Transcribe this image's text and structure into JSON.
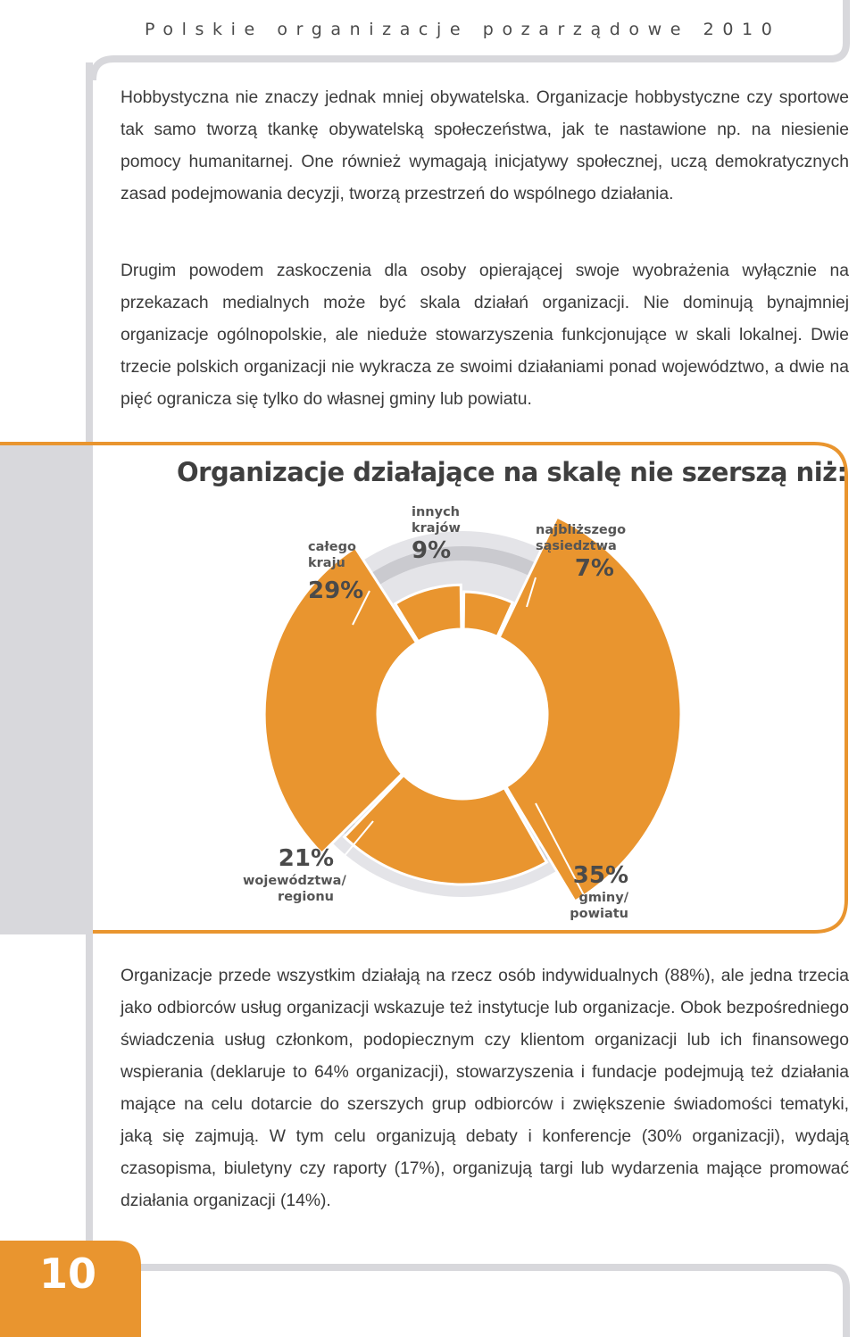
{
  "header": {
    "title": "Polskie organizacje pozarządowe 2010"
  },
  "paragraphs": [
    "Hobbystyczna nie znaczy jednak mniej obywatelska. Organizacje hobbystyczne czy sportowe tak samo tworzą tkankę obywatelską społeczeństwa, jak te nastawione np. na niesienie pomocy humanitarnej. One również wymagają inicjatywy społecznej, uczą demokratycznych zasad podejmowania decyzji, tworzą przestrzeń do wspólnego działania.",
    "Drugim powodem zaskoczenia dla osoby opierającej swoje wyobrażenia wyłącznie na przekazach medialnych może być skala działań organizacji. Nie dominują bynajmniej organizacje ogólnopolskie, ale nieduże stowarzyszenia funkcjonujące w skali lokalnej. Dwie trzecie polskich organizacji nie wykracza ze swoimi działaniami ponad województwo, a dwie na pięć ogranicza się tylko do własnej gminy lub powiatu.",
    "Organizacje przede wszystkim działają na rzecz osób indywidualnych (88%), ale jedna trzecia jako odbiorców usług organizacji wskazuje też instytucje lub organizacje. Obok bezpośredniego świadczenia usług członkom, podopiecznym czy klientom organizacji lub ich finansowego wspierania (deklaruje to 64% organizacji), stowarzyszenia i fundacje podejmują też działania mające na celu dotarcie do szerszych grup odbiorców i zwiększenie świadomości tematyki, jaką się zajmują. W tym celu organizują debaty i konferencje (30% organizacji), wydają czasopisma, biuletyny czy raporty (17%), organizują targi lub wydarzenia mające promować działania organizacji (14%)."
  ],
  "chart_data": {
    "type": "pie",
    "title": "Organizacje działające na skalę nie szerszą niż:",
    "start_label": "",
    "slices": [
      {
        "label_lines": [
          "najbliższego",
          "sąsiedztwa"
        ],
        "value": 7,
        "pct": "7%",
        "color": "#e9952f"
      },
      {
        "label_lines": [
          "gminy/",
          "powiatu"
        ],
        "value": 35,
        "pct": "35%",
        "color": "#e9952f"
      },
      {
        "label_lines": [
          "województwa/",
          "regionu"
        ],
        "value": 21,
        "pct": "21%",
        "color": "#e9952f"
      },
      {
        "label_lines": [
          "całego",
          "kraju"
        ],
        "value": 29,
        "pct": "29%",
        "color": "#e9952f"
      },
      {
        "label_lines": [
          "innych",
          "krajów"
        ],
        "value": 9,
        "pct": "9%",
        "color": "#e9952f"
      }
    ]
  },
  "colors": {
    "accent": "#e9952f",
    "frame_gray": "#d8d8dc",
    "ring_gray_light": "#e4e4e8",
    "ring_gray_dark": "#cacacf"
  },
  "footer": {
    "page_number": "10"
  }
}
